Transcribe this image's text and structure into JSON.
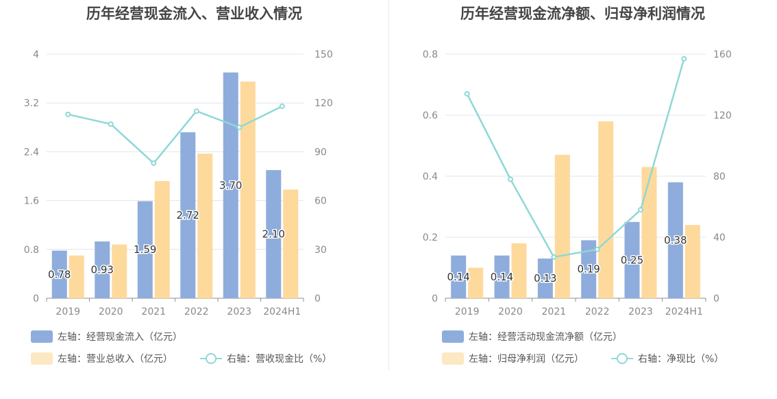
{
  "colors": {
    "bar_primary": "#8eaddc",
    "bar_secondary": "#fdd99c",
    "line": "#8ed8d6",
    "grid": "#e0e4ef",
    "axis_text": "#888888",
    "title": "#444444"
  },
  "chart_data": [
    {
      "type": "bar",
      "title": "历年经营现金流入、营业收入情况",
      "categories": [
        "2019",
        "2020",
        "2021",
        "2022",
        "2023",
        "2024H1"
      ],
      "y_left": {
        "ticks": [
          "0",
          "0.8",
          "1.6",
          "2.4",
          "3.2",
          "4"
        ],
        "min": 0,
        "max": 4
      },
      "y_right": {
        "ticks": [
          "0",
          "30",
          "60",
          "90",
          "120",
          "150"
        ],
        "min": 0,
        "max": 150
      },
      "series": [
        {
          "name": "左轴：经营现金流入（亿元）",
          "axis": "left",
          "type": "bar",
          "values": [
            0.78,
            0.93,
            1.59,
            2.72,
            3.7,
            2.1
          ],
          "labels": [
            "0.78",
            "0.93",
            "1.59",
            "2.72",
            "3.70",
            "2.10"
          ]
        },
        {
          "name": "左轴：营业总收入（亿元）",
          "axis": "left",
          "type": "bar",
          "values": [
            0.7,
            0.88,
            1.92,
            2.37,
            3.55,
            1.78
          ]
        },
        {
          "name": "右轴：营收现金比（%）",
          "axis": "right",
          "type": "line",
          "values": [
            113,
            107,
            83,
            115,
            105,
            118
          ]
        }
      ],
      "legend": [
        {
          "label": "左轴：经营现金流入（亿元）",
          "kind": "bar",
          "color": "#8eaddc"
        },
        {
          "label": "左轴：营业总收入（亿元）",
          "kind": "bar",
          "color": "#fde8c4"
        },
        {
          "label": "右轴：营收现金比（%）",
          "kind": "line",
          "color": "#8ed8d6"
        }
      ]
    },
    {
      "type": "bar",
      "title": "历年经营现金流净额、归母净利润情况",
      "categories": [
        "2019",
        "2020",
        "2021",
        "2022",
        "2023",
        "2024H1"
      ],
      "y_left": {
        "ticks": [
          "0",
          "0.2",
          "0.4",
          "0.6",
          "0.8"
        ],
        "min": 0,
        "max": 0.8
      },
      "y_right": {
        "ticks": [
          "0",
          "40",
          "80",
          "120",
          "160"
        ],
        "min": 0,
        "max": 160
      },
      "series": [
        {
          "name": "左轴：经营活动现金流净额（亿元）",
          "axis": "left",
          "type": "bar",
          "values": [
            0.14,
            0.14,
            0.13,
            0.19,
            0.25,
            0.38
          ],
          "labels": [
            "0.14",
            "0.14",
            "0.13",
            "0.19",
            "0.25",
            "0.38"
          ]
        },
        {
          "name": "左轴：归母净利润（亿元）",
          "axis": "left",
          "type": "bar",
          "values": [
            0.1,
            0.18,
            0.47,
            0.58,
            0.43,
            0.24
          ]
        },
        {
          "name": "右轴：净现比（%）",
          "axis": "right",
          "type": "line",
          "values": [
            134,
            78,
            27,
            32,
            58,
            157
          ]
        }
      ],
      "legend": [
        {
          "label": "左轴：经营活动现金流净额（亿元）",
          "kind": "bar",
          "color": "#8eaddc"
        },
        {
          "label": "左轴：归母净利润（亿元）",
          "kind": "bar",
          "color": "#fde8c4"
        },
        {
          "label": "右轴：净现比（%）",
          "kind": "line",
          "color": "#8ed8d6"
        }
      ]
    }
  ]
}
